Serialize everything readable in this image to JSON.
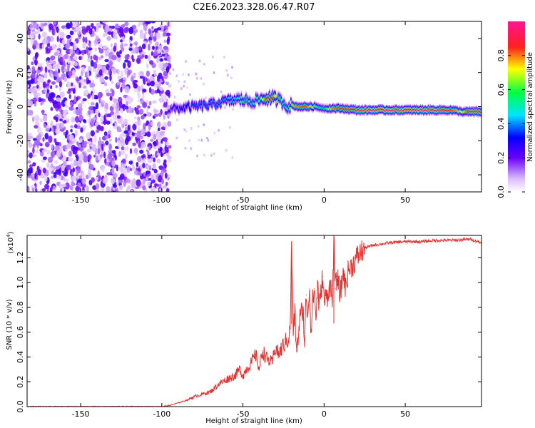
{
  "title": "C2E6.2023.328.06.47.R07",
  "chart_data": [
    {
      "type": "heatmap",
      "name": "spectrogram",
      "xlabel": "Height of straight line (km)",
      "ylabel": "Frequency (Hz)",
      "xlim": [
        -183,
        97
      ],
      "ylim": [
        -50,
        50
      ],
      "xticks": [
        -150,
        -100,
        -50,
        0,
        50
      ],
      "yticks": [
        -40,
        -20,
        0,
        20,
        40
      ],
      "noise_region_x": [
        -183,
        -95
      ],
      "ridge": {
        "x": [
          -96,
          -90,
          -80,
          -70,
          -62,
          -55,
          -50,
          -45,
          -40,
          -35,
          -32,
          -28,
          -25,
          -22,
          -20,
          -17,
          -15,
          -12,
          -10,
          -5,
          0,
          5,
          10,
          20,
          30,
          40,
          50,
          60,
          70,
          78,
          85,
          90,
          97
        ],
        "y": [
          -2,
          -1,
          0,
          1,
          3,
          4,
          4,
          3,
          4,
          5,
          5,
          4,
          2,
          0,
          1,
          0,
          0,
          0,
          0,
          0,
          -1,
          -1,
          -1,
          -2,
          -2,
          -2,
          -2,
          -2,
          -2,
          -2,
          -3,
          -3,
          -3
        ],
        "amplitude": [
          0.25,
          0.3,
          0.35,
          0.38,
          0.4,
          0.45,
          0.55,
          0.5,
          0.55,
          0.9,
          0.85,
          0.6,
          0.5,
          0.55,
          0.75,
          0.8,
          0.8,
          0.85,
          0.8,
          0.6,
          0.5,
          0.8,
          0.85,
          0.9,
          0.95,
          0.95,
          0.95,
          0.95,
          0.92,
          0.85,
          0.7,
          0.9,
          0.9
        ]
      },
      "colorbar": {
        "label": "Normalized spectral amplitude",
        "range": [
          0,
          1
        ],
        "ticks": [
          "0.0",
          "0.2",
          "0.4",
          "0.6",
          "0.8"
        ],
        "colors": [
          "#ffffff",
          "#8a2be2",
          "#0000ff",
          "#00ffff",
          "#00ff00",
          "#ffff00",
          "#ff0000",
          "#ff1493"
        ]
      }
    },
    {
      "type": "line",
      "name": "snr",
      "xlabel": "Height of straight line (km)",
      "ylabel": "SNR (10 * v/v)",
      "scale_label": "(x10",
      "scale_exp": "4",
      "xlim": [
        -183,
        97
      ],
      "ylim": [
        0,
        1.38
      ],
      "xticks": [
        -150,
        -100,
        -50,
        0,
        50
      ],
      "yticks": [
        "0.0",
        "0.2",
        "0.4",
        "0.6",
        "0.8",
        "1.0",
        "1.2"
      ],
      "color": "#e8312f",
      "x": [
        -183,
        -150,
        -100,
        -95,
        -90,
        -85,
        -80,
        -75,
        -70,
        -65,
        -60,
        -55,
        -52,
        -50,
        -48,
        -45,
        -42,
        -40,
        -38,
        -35,
        -32,
        -30,
        -28,
        -25,
        -22,
        -21,
        -20,
        -19,
        -18,
        -17,
        -16,
        -15,
        -13,
        -12,
        -11,
        -10,
        -9,
        -8,
        -7,
        -6,
        -5,
        -4,
        -3,
        -2,
        -1,
        0,
        2,
        4,
        5,
        6,
        7,
        8,
        10,
        11,
        12,
        13,
        15,
        18,
        20,
        25,
        30,
        35,
        40,
        50,
        60,
        70,
        80,
        90,
        95,
        97
      ],
      "y": [
        0.0,
        0.0,
        0.0,
        0.01,
        0.03,
        0.05,
        0.08,
        0.1,
        0.12,
        0.18,
        0.22,
        0.25,
        0.3,
        0.25,
        0.3,
        0.35,
        0.42,
        0.3,
        0.45,
        0.38,
        0.35,
        0.48,
        0.42,
        0.5,
        0.55,
        0.6,
        1.33,
        0.6,
        0.75,
        0.45,
        0.55,
        0.7,
        0.8,
        0.5,
        0.9,
        0.75,
        0.95,
        0.6,
        0.85,
        0.95,
        0.7,
        1.0,
        0.8,
        0.9,
        1.05,
        0.85,
        0.9,
        1.0,
        0.8,
        1.34,
        0.95,
        1.05,
        0.9,
        1.0,
        1.1,
        0.95,
        1.1,
        1.15,
        1.2,
        1.28,
        1.3,
        1.31,
        1.32,
        1.33,
        1.33,
        1.34,
        1.34,
        1.35,
        1.33,
        1.32
      ]
    }
  ]
}
